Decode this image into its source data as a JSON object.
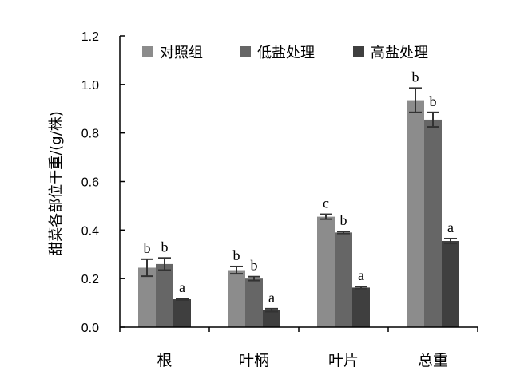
{
  "chart_data": {
    "type": "bar",
    "title": "",
    "xlabel": "",
    "ylabel": "甜菜各部位干重/(g/株)",
    "ylim": [
      0,
      1.2
    ],
    "yticks": [
      "0.0",
      "0.2",
      "0.4",
      "0.6",
      "0.8",
      "1.0",
      "1.2"
    ],
    "categories": [
      "根",
      "叶柄",
      "叶片",
      "总重"
    ],
    "legend_position": "top",
    "grid": false,
    "series": [
      {
        "name": "对照组",
        "color": "#8c8c8c",
        "values": [
          0.245,
          0.235,
          0.455,
          0.935
        ],
        "errors": [
          0.035,
          0.015,
          0.01,
          0.05
        ],
        "labels": [
          "b",
          "b",
          "c",
          "b"
        ]
      },
      {
        "name": "低盐处理",
        "color": "#666666",
        "values": [
          0.26,
          0.2,
          0.39,
          0.855
        ],
        "errors": [
          0.025,
          0.008,
          0.004,
          0.03
        ],
        "labels": [
          "b",
          "b",
          "b",
          "b"
        ]
      },
      {
        "name": "高盐处理",
        "color": "#3f3f3f",
        "values": [
          0.115,
          0.07,
          0.163,
          0.355
        ],
        "errors": [
          0.003,
          0.006,
          0.004,
          0.01
        ],
        "labels": [
          "a",
          "a",
          "a",
          "a"
        ]
      }
    ]
  }
}
